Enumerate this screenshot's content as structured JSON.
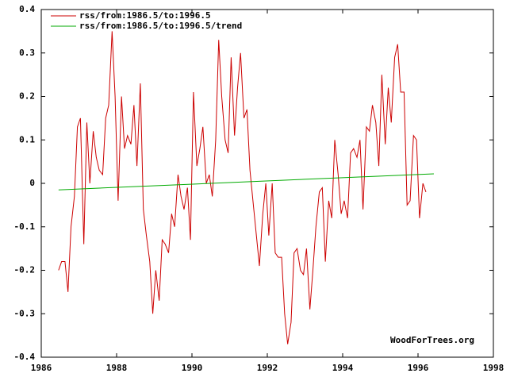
{
  "chart_data": {
    "type": "line",
    "watermark": "WoodForTrees.org",
    "x": [
      1986.46,
      1986.54,
      1986.63,
      1986.71,
      1986.79,
      1986.88,
      1986.96,
      1987.04,
      1987.13,
      1987.21,
      1987.29,
      1987.38,
      1987.46,
      1987.54,
      1987.63,
      1987.71,
      1987.79,
      1987.88,
      1987.96,
      1988.04,
      1988.13,
      1988.21,
      1988.29,
      1988.38,
      1988.46,
      1988.54,
      1988.63,
      1988.71,
      1988.79,
      1988.88,
      1988.96,
      1989.04,
      1989.13,
      1989.21,
      1989.29,
      1989.38,
      1989.46,
      1989.54,
      1989.63,
      1989.71,
      1989.79,
      1989.88,
      1989.96,
      1990.04,
      1990.13,
      1990.21,
      1990.29,
      1990.38,
      1990.46,
      1990.54,
      1990.63,
      1990.71,
      1990.79,
      1990.88,
      1990.96,
      1991.04,
      1991.13,
      1991.21,
      1991.29,
      1991.38,
      1991.46,
      1991.54,
      1991.63,
      1991.71,
      1991.79,
      1991.88,
      1991.96,
      1992.04,
      1992.13,
      1992.21,
      1992.29,
      1992.38,
      1992.46,
      1992.54,
      1992.63,
      1992.71,
      1992.79,
      1992.88,
      1992.96,
      1993.04,
      1993.13,
      1993.21,
      1993.29,
      1993.38,
      1993.46,
      1993.54,
      1993.63,
      1993.71,
      1993.79,
      1993.88,
      1993.96,
      1994.04,
      1994.13,
      1994.21,
      1994.29,
      1994.38,
      1994.46,
      1994.54,
      1994.63,
      1994.71,
      1994.79,
      1994.88,
      1994.96,
      1995.04,
      1995.13,
      1995.21,
      1995.29,
      1995.38,
      1995.46,
      1995.54,
      1995.63,
      1995.71,
      1995.79,
      1995.88,
      1995.96,
      1996.04,
      1996.13,
      1996.21
    ],
    "series": [
      {
        "name": "rss/from:1986.5/to:1996.5",
        "color": "#cc0000",
        "values": [
          -0.2,
          -0.18,
          -0.18,
          -0.25,
          -0.1,
          -0.03,
          0.13,
          0.15,
          -0.14,
          0.14,
          0.0,
          0.12,
          0.06,
          0.03,
          0.02,
          0.15,
          0.18,
          0.35,
          0.2,
          -0.04,
          0.2,
          0.08,
          0.11,
          0.09,
          0.18,
          0.04,
          0.23,
          -0.06,
          -0.12,
          -0.18,
          -0.3,
          -0.2,
          -0.27,
          -0.13,
          -0.14,
          -0.16,
          -0.07,
          -0.1,
          0.02,
          -0.03,
          -0.06,
          -0.01,
          -0.13,
          0.21,
          0.04,
          0.08,
          0.13,
          0.0,
          0.02,
          -0.03,
          0.1,
          0.33,
          0.2,
          0.1,
          0.07,
          0.29,
          0.11,
          0.22,
          0.3,
          0.15,
          0.17,
          0.03,
          -0.05,
          -0.12,
          -0.19,
          -0.07,
          0.0,
          -0.12,
          0.0,
          -0.16,
          -0.17,
          -0.17,
          -0.3,
          -0.37,
          -0.32,
          -0.16,
          -0.15,
          -0.2,
          -0.21,
          -0.15,
          -0.29,
          -0.2,
          -0.1,
          -0.02,
          -0.01,
          -0.18,
          -0.04,
          -0.08,
          0.1,
          0.02,
          -0.07,
          -0.04,
          -0.08,
          0.07,
          0.08,
          0.06,
          0.1,
          -0.06,
          0.13,
          0.12,
          0.18,
          0.14,
          0.04,
          0.25,
          0.09,
          0.22,
          0.14,
          0.29,
          0.32,
          0.21,
          0.21,
          -0.05,
          -0.04,
          0.11,
          0.1,
          -0.08,
          0.0,
          -0.02
        ]
      },
      {
        "name": "rss/from:1986.5/to:1996.5/trend",
        "color": "#00aa00",
        "x": [
          1986.46,
          1996.42
        ],
        "values": [
          -0.015,
          0.022
        ]
      }
    ],
    "xlim": [
      1986,
      1998
    ],
    "xticks": [
      1986,
      1988,
      1990,
      1992,
      1994,
      1996,
      1998
    ],
    "ylim": [
      -0.4,
      0.4
    ],
    "yticks": [
      -0.4,
      -0.3,
      -0.2,
      -0.1,
      0,
      0.1,
      0.2,
      0.3,
      0.4
    ],
    "legend": "top-left"
  }
}
